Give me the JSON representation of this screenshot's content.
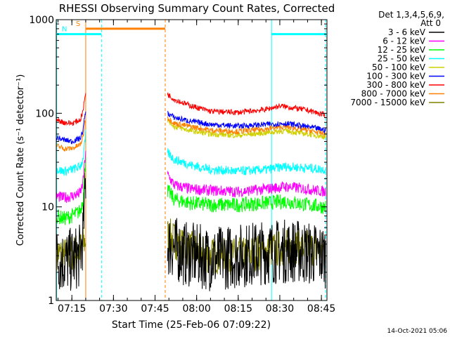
{
  "chart_data": {
    "type": "line",
    "title": "RHESSI Observing Summary Count Rates, Corrected",
    "xlabel": "Start Time (25-Feb-06 07:09:22)",
    "ylabel": "Corrected Count Rate (s⁻¹ detector⁻¹)",
    "y_scale": "log",
    "ylim": [
      1,
      1000
    ],
    "xlim": [
      "07:09:22",
      "08:47:00"
    ],
    "x_ticks": [
      "07:15",
      "07:30",
      "07:45",
      "08:00",
      "08:15",
      "08:30",
      "08:45"
    ],
    "y_ticks": [
      {
        "label": "1",
        "value": 1
      },
      {
        "label": "10",
        "value": 10
      },
      {
        "label": "100",
        "value": 100
      },
      {
        "label": "1000",
        "value": 1000
      }
    ],
    "legend_header": [
      "Det 1,3,4,5,6,9,",
      "Att 0"
    ],
    "legend_position": "right",
    "timestamp": "14-Oct-2021 05:06",
    "flags": [
      {
        "label": "S",
        "color": "#ff8000",
        "value": 800,
        "start": "07:20:00",
        "end": "07:48:40"
      },
      {
        "label": "N",
        "color": "#00ffff",
        "value": 700,
        "start": "07:09:22",
        "end": "07:25:40"
      },
      {
        "label": "",
        "color": "#00ffff",
        "value": 700,
        "start": "08:27:00",
        "end": "08:47:00"
      }
    ],
    "vertical_markers": [
      {
        "time": "07:09:30",
        "color": "#00ffff",
        "style": "solid"
      },
      {
        "time": "07:20:00",
        "color": "#ff8000",
        "style": "solid"
      },
      {
        "time": "07:25:40",
        "color": "#00ffff",
        "style": "dashed"
      },
      {
        "time": "07:48:40",
        "color": "#ff8000",
        "style": "dashed"
      },
      {
        "time": "08:27:00",
        "color": "#00ffff",
        "style": "solid"
      },
      {
        "time": "08:46:30",
        "color": "#00ffff",
        "style": "dashed"
      }
    ],
    "series": [
      {
        "name": "3 - 6 keV",
        "color": "#000000",
        "noise": 0.35,
        "segments": [
          {
            "x": [
              "07:09:30",
              "07:12:00",
              "07:15:00",
              "07:18:00",
              "07:19:00",
              "07:20:00"
            ],
            "y": [
              2.8,
              2.6,
              2.7,
              3.0,
              5.0,
              20
            ]
          },
          {
            "x": [
              "07:49:30",
              "07:55:00",
              "08:05:00",
              "08:15:00",
              "08:25:00",
              "08:35:00",
              "08:46:30"
            ],
            "y": [
              4.0,
              3.2,
              2.8,
              3.0,
              3.3,
              3.4,
              3.0
            ]
          }
        ]
      },
      {
        "name": "6 - 12 keV",
        "color": "#ff00ff",
        "noise": 0.06,
        "segments": [
          {
            "x": [
              "07:09:30",
              "07:12:00",
              "07:15:00",
              "07:18:00",
              "07:19:00",
              "07:20:00"
            ],
            "y": [
              13,
              12.5,
              13,
              14,
              18,
              40
            ]
          },
          {
            "x": [
              "07:49:30",
              "07:52:00",
              "07:58:00",
              "08:05:00",
              "08:15:00",
              "08:25:00",
              "08:32:00",
              "08:40:00",
              "08:46:30"
            ],
            "y": [
              22,
              17,
              15.5,
              15,
              14.5,
              15.5,
              16.5,
              15.5,
              14.5
            ]
          }
        ]
      },
      {
        "name": "12 - 25 keV",
        "color": "#00ff00",
        "noise": 0.08,
        "segments": [
          {
            "x": [
              "07:09:30",
              "07:12:00",
              "07:15:00",
              "07:18:00",
              "07:19:00",
              "07:20:00"
            ],
            "y": [
              8,
              7.5,
              8,
              9,
              12,
              35
            ]
          },
          {
            "x": [
              "07:49:30",
              "07:52:00",
              "07:58:00",
              "08:05:00",
              "08:15:00",
              "08:25:00",
              "08:32:00",
              "08:40:00",
              "08:46:30"
            ],
            "y": [
              15,
              12,
              11,
              10.5,
              10.5,
              11,
              11.5,
              10.5,
              10
            ]
          }
        ]
      },
      {
        "name": "25 - 50 keV",
        "color": "#00ffff",
        "noise": 0.05,
        "segments": [
          {
            "x": [
              "07:09:30",
              "07:12:00",
              "07:15:00",
              "07:18:00",
              "07:19:00",
              "07:20:00"
            ],
            "y": [
              25,
              24,
              25,
              27,
              32,
              60
            ]
          },
          {
            "x": [
              "07:49:30",
              "07:52:00",
              "07:58:00",
              "08:05:00",
              "08:15:00",
              "08:25:00",
              "08:32:00",
              "08:40:00",
              "08:46:30"
            ],
            "y": [
              38,
              32,
              28,
              25,
              24,
              25,
              27,
              26,
              25
            ]
          }
        ]
      },
      {
        "name": "50 - 100 keV",
        "color": "#d0d000",
        "noise": 0.03,
        "segments": [
          {
            "x": [
              "07:49:30",
              "07:52:00",
              "07:58:00",
              "08:05:00",
              "08:15:00",
              "08:25:00",
              "08:32:00",
              "08:40:00",
              "08:46:30"
            ],
            "y": [
              85,
              72,
              65,
              60,
              58,
              62,
              65,
              60,
              56
            ]
          }
        ]
      },
      {
        "name": "100 - 300 keV",
        "color": "#0000ff",
        "noise": 0.03,
        "segments": [
          {
            "x": [
              "07:09:30",
              "07:12:00",
              "07:15:00",
              "07:18:00",
              "07:19:00",
              "07:20:00"
            ],
            "y": [
              55,
              52,
              50,
              54,
              65,
              110
            ]
          },
          {
            "x": [
              "07:49:30",
              "07:52:00",
              "07:58:00",
              "08:05:00",
              "08:15:00",
              "08:25:00",
              "08:32:00",
              "08:40:00",
              "08:46:30"
            ],
            "y": [
              100,
              90,
              82,
              76,
              73,
              76,
              78,
              72,
              66
            ]
          }
        ]
      },
      {
        "name": "300 - 800 keV",
        "color": "#ff0000",
        "noise": 0.03,
        "segments": [
          {
            "x": [
              "07:09:30",
              "07:12:00",
              "07:15:00",
              "07:18:00",
              "07:19:00",
              "07:20:00"
            ],
            "y": [
              85,
              80,
              78,
              85,
              105,
              170
            ]
          },
          {
            "x": [
              "07:49:30",
              "07:52:00",
              "07:58:00",
              "08:05:00",
              "08:15:00",
              "08:25:00",
              "08:30:00",
              "08:40:00",
              "08:46:30"
            ],
            "y": [
              160,
              140,
              120,
              105,
              102,
              110,
              120,
              108,
              95
            ]
          }
        ]
      },
      {
        "name": "800 - 7000 keV",
        "color": "#ff8000",
        "noise": 0.03,
        "segments": [
          {
            "x": [
              "07:09:30",
              "07:12:00",
              "07:15:00",
              "07:18:00",
              "07:19:00",
              "07:20:00"
            ],
            "y": [
              45,
              42,
              42,
              46,
              55,
              90
            ]
          },
          {
            "x": [
              "07:49:30",
              "07:52:00",
              "07:58:00",
              "08:05:00",
              "08:15:00",
              "08:25:00",
              "08:32:00",
              "08:40:00",
              "08:46:30"
            ],
            "y": [
              90,
              78,
              72,
              66,
              64,
              68,
              72,
              66,
              60
            ]
          }
        ]
      },
      {
        "name": "7000 - 15000 keV",
        "color": "#808000",
        "noise": 0.2,
        "segments": [
          {
            "x": [
              "07:09:30",
              "07:12:00",
              "07:15:00",
              "07:18:00",
              "07:19:00",
              "07:20:00"
            ],
            "y": [
              3.3,
              3.0,
              3.2,
              3.5,
              4.0,
              4.5
            ]
          },
          {
            "x": [
              "07:49:30",
              "07:55:00",
              "08:05:00",
              "08:15:00",
              "08:25:00",
              "08:35:00",
              "08:46:30"
            ],
            "y": [
              5.0,
              3.8,
              3.0,
              3.0,
              3.4,
              3.8,
              3.5
            ]
          }
        ]
      }
    ]
  }
}
